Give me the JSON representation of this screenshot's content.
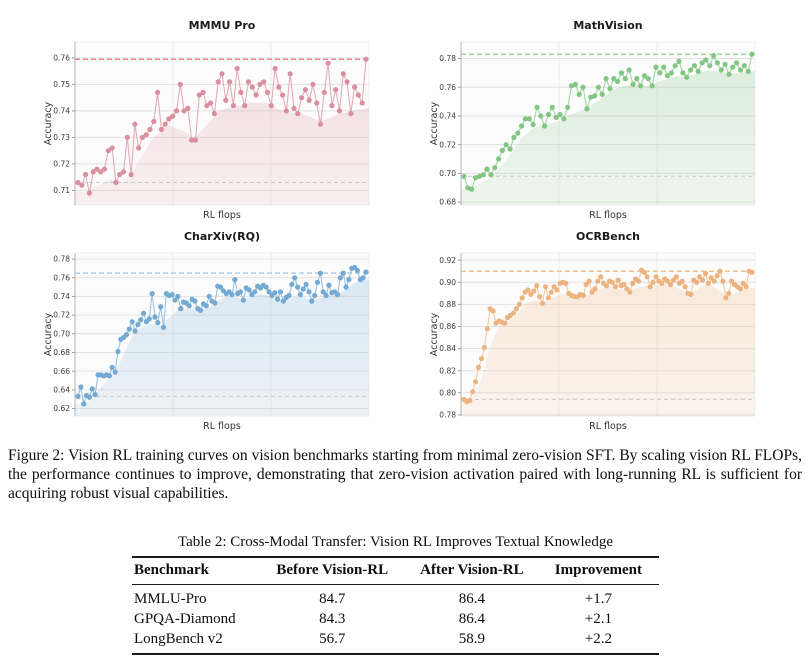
{
  "figure": {
    "caption": "Figure 2: Vision RL training curves on vision benchmarks starting from minimal zero-vision SFT. By scaling vision RL FLOPs, the performance continues to improve, demonstrating that zero-vision activation paired with long-running RL is sufficient for acquiring robust visual capabilities."
  },
  "table": {
    "caption": "Table 2: Cross-Modal Transfer: Vision RL Improves Textual Knowledge",
    "columns": [
      "Benchmark",
      "Before Vision-RL",
      "After Vision-RL",
      "Improvement"
    ],
    "rows": [
      [
        "MMLU-Pro",
        "84.7",
        "86.4",
        "+1.7"
      ],
      [
        "GPQA-Diamond",
        "84.3",
        "86.4",
        "+2.1"
      ],
      [
        "LongBench v2",
        "56.7",
        "58.9",
        "+2.2"
      ]
    ]
  },
  "chart_data": [
    {
      "type": "line",
      "title": "MMMU Pro",
      "xlabel": "RL flops",
      "ylabel": "Accuracy",
      "legend": "none",
      "grid": "horizontal",
      "marker_color": "#db8e9d",
      "line_color": "#e2a3ae",
      "fill_color": "#dfa0ac",
      "ref_max_color": "#e4717e",
      "ref_min_color": "#c7c7c7",
      "ylim": [
        0.7045,
        0.766
      ],
      "yticks": [
        0.71,
        0.72,
        0.73,
        0.74,
        0.75,
        0.76
      ],
      "ref_max": 0.7595,
      "ref_min": 0.713,
      "values": [
        0.713,
        0.712,
        0.716,
        0.709,
        0.717,
        0.718,
        0.717,
        0.718,
        0.725,
        0.726,
        0.713,
        0.716,
        0.717,
        0.73,
        0.716,
        0.735,
        0.726,
        0.73,
        0.731,
        0.733,
        0.736,
        0.747,
        0.733,
        0.735,
        0.737,
        0.738,
        0.74,
        0.75,
        0.74,
        0.741,
        0.729,
        0.729,
        0.746,
        0.747,
        0.742,
        0.743,
        0.739,
        0.751,
        0.754,
        0.744,
        0.751,
        0.742,
        0.756,
        0.747,
        0.742,
        0.751,
        0.749,
        0.746,
        0.75,
        0.751,
        0.747,
        0.742,
        0.756,
        0.749,
        0.746,
        0.74,
        0.754,
        0.741,
        0.739,
        0.745,
        0.748,
        0.744,
        0.75,
        0.743,
        0.735,
        0.747,
        0.758,
        0.742,
        0.748,
        0.74,
        0.754,
        0.751,
        0.739,
        0.749,
        0.746,
        0.743,
        0.7595
      ]
    },
    {
      "type": "line",
      "title": "MathVision",
      "xlabel": "RL flops",
      "ylabel": "Accuracy",
      "legend": "none",
      "grid": "horizontal",
      "marker_color": "#82c683",
      "line_color": "#98d099",
      "fill_color": "#8fca90",
      "ref_max_color": "#7fcf87",
      "ref_min_color": "#c7c7c7",
      "ylim": [
        0.678,
        0.7915
      ],
      "yticks": [
        0.68,
        0.7,
        0.72,
        0.74,
        0.76,
        0.78
      ],
      "ref_max": 0.783,
      "ref_min": 0.698,
      "values": [
        0.698,
        0.69,
        0.689,
        0.697,
        0.698,
        0.699,
        0.703,
        0.699,
        0.704,
        0.71,
        0.716,
        0.72,
        0.717,
        0.725,
        0.728,
        0.733,
        0.738,
        0.738,
        0.734,
        0.746,
        0.74,
        0.733,
        0.741,
        0.746,
        0.739,
        0.741,
        0.738,
        0.746,
        0.761,
        0.762,
        0.755,
        0.76,
        0.745,
        0.753,
        0.754,
        0.76,
        0.755,
        0.766,
        0.759,
        0.766,
        0.764,
        0.77,
        0.766,
        0.772,
        0.762,
        0.766,
        0.761,
        0.768,
        0.766,
        0.761,
        0.774,
        0.77,
        0.774,
        0.768,
        0.77,
        0.775,
        0.778,
        0.77,
        0.767,
        0.772,
        0.775,
        0.771,
        0.777,
        0.779,
        0.775,
        0.782,
        0.777,
        0.772,
        0.776,
        0.769,
        0.774,
        0.777,
        0.772,
        0.775,
        0.771,
        0.783
      ]
    },
    {
      "type": "line",
      "title": "CharXiv(RQ)",
      "xlabel": "RL flops",
      "ylabel": "Accuracy",
      "legend": "none",
      "grid": "horizontal",
      "marker_color": "#74aad2",
      "line_color": "#8dbbdd",
      "fill_color": "#86b6db",
      "ref_max_color": "#93c2e2",
      "ref_min_color": "#c7c7c7",
      "ylim": [
        0.612,
        0.7865
      ],
      "yticks": [
        0.62,
        0.64,
        0.66,
        0.68,
        0.7,
        0.72,
        0.74,
        0.76,
        0.78
      ],
      "ref_max": 0.765,
      "ref_min": 0.633,
      "values": [
        0.633,
        0.643,
        0.625,
        0.634,
        0.632,
        0.641,
        0.635,
        0.656,
        0.656,
        0.655,
        0.656,
        0.655,
        0.664,
        0.659,
        0.681,
        0.694,
        0.696,
        0.699,
        0.705,
        0.713,
        0.703,
        0.71,
        0.715,
        0.722,
        0.713,
        0.716,
        0.743,
        0.718,
        0.712,
        0.729,
        0.707,
        0.743,
        0.741,
        0.742,
        0.736,
        0.74,
        0.727,
        0.734,
        0.733,
        0.73,
        0.737,
        0.735,
        0.727,
        0.725,
        0.732,
        0.73,
        0.74,
        0.735,
        0.733,
        0.751,
        0.75,
        0.746,
        0.743,
        0.745,
        0.742,
        0.758,
        0.743,
        0.745,
        0.736,
        0.749,
        0.747,
        0.742,
        0.745,
        0.751,
        0.749,
        0.752,
        0.75,
        0.745,
        0.741,
        0.744,
        0.737,
        0.745,
        0.735,
        0.739,
        0.741,
        0.753,
        0.76,
        0.75,
        0.742,
        0.748,
        0.753,
        0.745,
        0.735,
        0.741,
        0.755,
        0.765,
        0.745,
        0.741,
        0.752,
        0.744,
        0.745,
        0.742,
        0.76,
        0.765,
        0.75,
        0.758,
        0.77,
        0.771,
        0.768,
        0.758,
        0.76,
        0.766
      ]
    },
    {
      "type": "line",
      "title": "OCRBench",
      "xlabel": "RL flops",
      "ylabel": "Accuracy",
      "legend": "none",
      "grid": "horizontal",
      "marker_color": "#edb37f",
      "line_color": "#f0c398",
      "fill_color": "#efba88",
      "ref_max_color": "#eeb878",
      "ref_min_color": "#c7c7c7",
      "ylim": [
        0.779,
        0.9265
      ],
      "yticks": [
        0.78,
        0.8,
        0.82,
        0.84,
        0.86,
        0.88,
        0.9,
        0.92
      ],
      "ref_max": 0.91,
      "ref_min": 0.794,
      "values": [
        0.794,
        0.792,
        0.793,
        0.801,
        0.81,
        0.823,
        0.831,
        0.841,
        0.858,
        0.876,
        0.874,
        0.863,
        0.865,
        0.864,
        0.863,
        0.868,
        0.87,
        0.872,
        0.876,
        0.88,
        0.886,
        0.891,
        0.893,
        0.889,
        0.892,
        0.897,
        0.887,
        0.881,
        0.896,
        0.886,
        0.891,
        0.896,
        0.893,
        0.899,
        0.9,
        0.899,
        0.89,
        0.888,
        0.887,
        0.887,
        0.889,
        0.888,
        0.898,
        0.901,
        0.891,
        0.894,
        0.901,
        0.905,
        0.899,
        0.897,
        0.901,
        0.9,
        0.896,
        0.902,
        0.897,
        0.898,
        0.894,
        0.891,
        0.899,
        0.903,
        0.901,
        0.911,
        0.909,
        0.905,
        0.896,
        0.9,
        0.905,
        0.901,
        0.899,
        0.903,
        0.901,
        0.898,
        0.902,
        0.905,
        0.899,
        0.901,
        0.896,
        0.89,
        0.889,
        0.902,
        0.9,
        0.905,
        0.902,
        0.908,
        0.899,
        0.904,
        0.901,
        0.906,
        0.91,
        0.901,
        0.886,
        0.89,
        0.901,
        0.898,
        0.896,
        0.894,
        0.899,
        0.896,
        0.91,
        0.909
      ]
    }
  ]
}
